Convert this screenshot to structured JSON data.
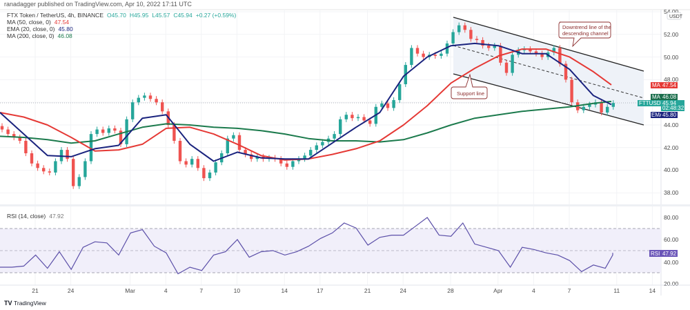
{
  "publisher_line": "ranadagger published on TradingView.com, Apr 10, 2022 17:11 UTC",
  "legend": {
    "symbol": "FTX Token / TetherUS, 4h, BINANCE",
    "open": "O45.70",
    "high": "H45.95",
    "low": "L45.57",
    "close": "C45.94",
    "change": "+0.27 (+0.59%)",
    "indicators": [
      {
        "label": "MA (50, close, 0)",
        "value": "47.54",
        "color": "#e53935"
      },
      {
        "label": "EMA (20, close, 0)",
        "value": "45.80",
        "color": "#1a237e"
      },
      {
        "label": "MA (200, close, 0)",
        "value": "46.08",
        "color": "#1b7a4c"
      }
    ]
  },
  "price_axis": {
    "currency": "USDT",
    "ticks": [
      "54.00",
      "52.00",
      "50.00",
      "48.00",
      "44.00",
      "42.00",
      "40.00",
      "38.00"
    ],
    "badges": {
      "ma50": {
        "tag": "MA",
        "value": "47.54",
        "color": "#e53935"
      },
      "ma200": {
        "tag": "MA",
        "value": "46.08",
        "color": "#1b6e4c"
      },
      "last": {
        "tag": "FTTUSDT",
        "value": "45.94",
        "countdown": "02:48:32",
        "color": "#26a69a"
      },
      "ema20": {
        "tag": "EMA",
        "value": "45.80",
        "color": "#1a237e"
      }
    }
  },
  "annotations": {
    "support": "Support line",
    "downtrend_line1": "Downtrend line of the",
    "downtrend_line2": "descending channel"
  },
  "rsi": {
    "label": "RSI (14, close)",
    "value": "47.92",
    "ticks": [
      "80.00",
      "60.00",
      "40.00",
      "20.00"
    ],
    "badge_tag": "RSI",
    "color": "#5b4fa8"
  },
  "time_axis": [
    "21",
    "24",
    "Mar",
    "4",
    "7",
    "10",
    "14",
    "17",
    "21",
    "24",
    "28",
    "Apr",
    "4",
    "7",
    "11",
    "14"
  ],
  "branding": "TradingView",
  "chart_data": {
    "type": "candlestick",
    "interval_shown": "4h",
    "price_range": [
      37,
      55
    ],
    "candle_closes_12h": [
      43.6,
      43.2,
      42.9,
      42.6,
      41.5,
      40.6,
      40.2,
      39.9,
      39.8,
      40.8,
      41.8,
      41.0,
      38.6,
      39.4,
      40.8,
      43.2,
      43.6,
      43.3,
      43.7,
      43.5,
      42.3,
      44.5,
      46.0,
      46.4,
      46.6,
      46.3,
      46.0,
      45.2,
      44.0,
      42.6,
      40.8,
      40.5,
      41.0,
      40.2,
      39.3,
      39.8,
      40.7,
      41.5,
      42.8,
      43.1,
      41.8,
      41.4,
      41.0,
      41.2,
      41.0,
      41.1,
      41.0,
      40.6,
      40.3,
      40.8,
      41.0,
      41.3,
      41.8,
      42.2,
      42.5,
      42.8,
      43.2,
      44.5,
      44.9,
      44.6,
      44.7,
      44.4,
      44.1,
      45.6,
      45.9,
      45.5,
      46.2,
      47.6,
      49.3,
      50.8,
      50.3,
      50.0,
      50.2,
      50.1,
      50.3,
      51.2,
      52.2,
      52.8,
      52.4,
      51.6,
      51.5,
      51.0,
      50.8,
      51.0,
      49.5,
      48.6,
      50.2,
      50.6,
      50.7,
      50.5,
      50.3,
      50.0,
      50.4,
      50.8,
      49.4,
      48.0,
      46.0,
      45.3,
      45.6,
      45.8,
      46.0,
      45.1,
      45.6,
      45.94
    ],
    "ema20_2day": [
      45.1,
      43.2,
      41.3,
      41.2,
      41.9,
      42.2,
      44.6,
      44.9,
      42.3,
      40.8,
      41.6,
      41.1,
      41.0,
      41.0,
      42.4,
      43.8,
      45.1,
      48.3,
      50.0,
      51.0,
      51.2,
      51.0,
      50.3,
      50.3,
      48.9,
      46.6,
      45.8
    ],
    "ma50_2day": [
      45.1,
      44.7,
      44.0,
      42.9,
      41.7,
      41.8,
      42.3,
      43.7,
      43.8,
      43.2,
      42.3,
      41.3,
      40.9,
      41.0,
      41.4,
      41.9,
      42.6,
      44.0,
      45.7,
      47.7,
      49.0,
      50.1,
      50.7,
      50.7,
      50.0,
      48.7,
      47.54
    ],
    "ma200_2day": [
      43.0,
      42.9,
      42.7,
      42.4,
      42.6,
      43.2,
      43.8,
      44.1,
      44.0,
      43.8,
      43.7,
      43.5,
      43.2,
      42.8,
      42.6,
      42.6,
      42.5,
      42.7,
      43.3,
      44.0,
      44.6,
      44.9,
      45.2,
      45.4,
      45.6,
      45.9,
      46.08
    ],
    "rsi_daily": [
      35,
      35,
      36,
      46,
      34,
      49,
      33,
      53,
      58,
      57,
      46,
      66,
      69,
      54,
      48,
      29,
      35,
      32,
      46,
      49,
      60,
      44,
      49,
      50,
      46,
      49,
      54,
      61,
      66,
      75,
      70.5,
      55,
      62,
      64,
      64,
      72,
      80,
      64,
      63,
      75,
      56,
      53,
      50,
      35,
      53,
      51,
      48,
      46,
      41,
      31,
      37,
      34,
      46,
      47.92
    ],
    "rsi_range": [
      15,
      88
    ],
    "rsi_levels": [
      70,
      50,
      30
    ],
    "colors": {
      "up": "#26a69a",
      "down": "#ef5350",
      "ema20": "#1a237e",
      "ma50": "#e53935",
      "ma200": "#1b7a4c",
      "rsi": "#5b4fa8"
    }
  }
}
